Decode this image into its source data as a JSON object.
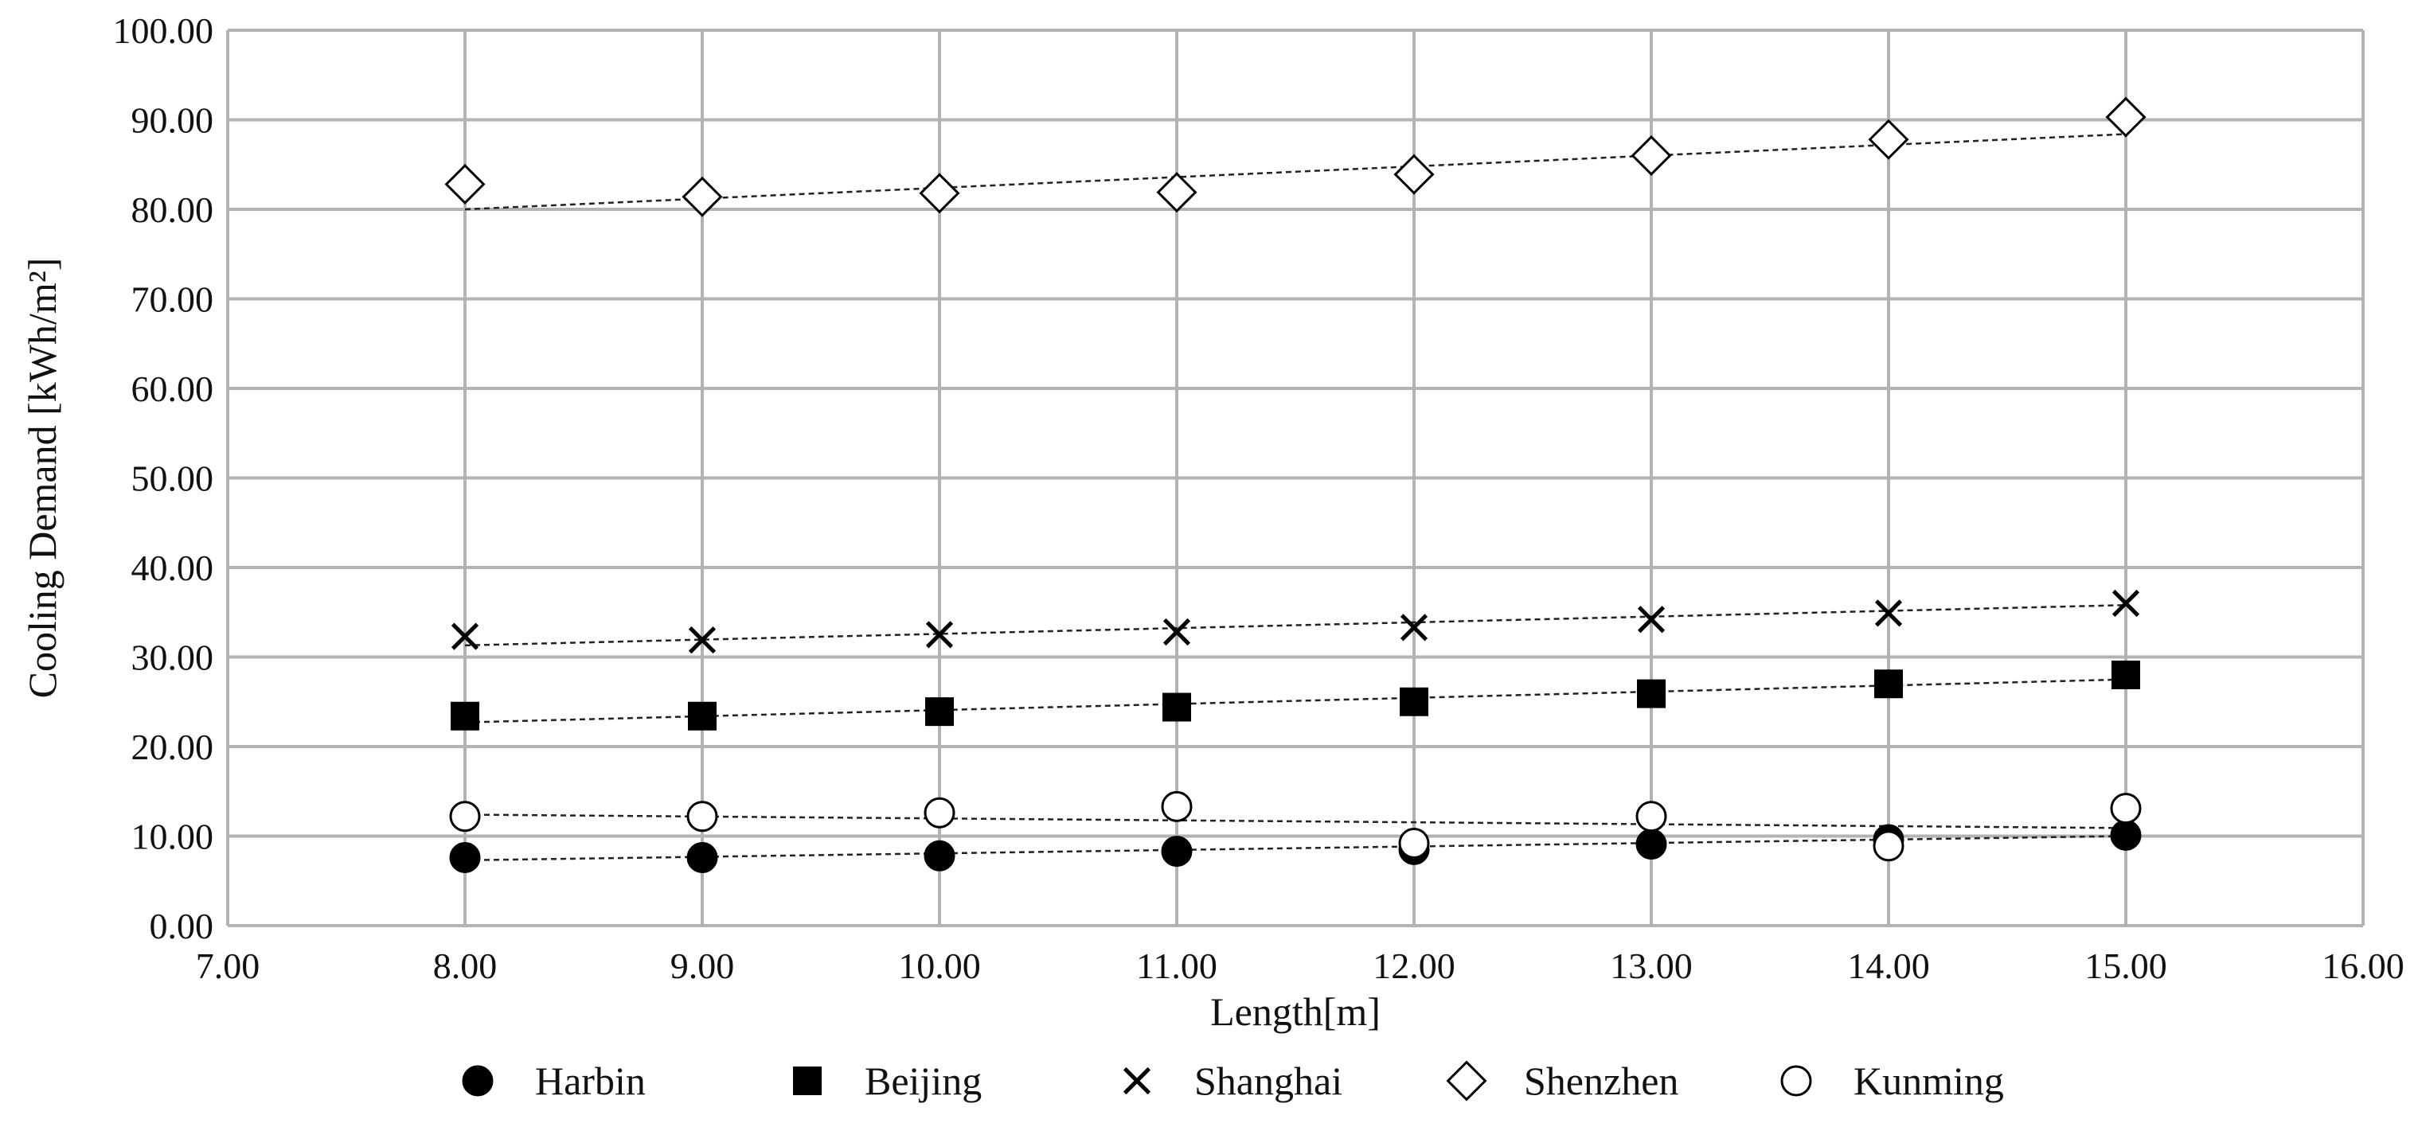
{
  "chart_data": {
    "type": "scatter",
    "title": "",
    "xlabel": "Length[m]",
    "ylabel": "Cooling Demand [kWh/m²]",
    "xlim": [
      7,
      16
    ],
    "ylim": [
      0,
      100
    ],
    "xticks": [
      7,
      8,
      9,
      10,
      11,
      12,
      13,
      14,
      15,
      16
    ],
    "yticks": [
      0,
      10,
      20,
      30,
      40,
      50,
      60,
      70,
      80,
      90,
      100
    ],
    "tick_decimals": 2,
    "grid": true,
    "legend_position": "bottom",
    "trendlines": true,
    "x": [
      8,
      9,
      10,
      11,
      12,
      13,
      14,
      15
    ],
    "series": [
      {
        "name": "Harbin",
        "marker": "filled-circle",
        "values": [
          7.6,
          7.6,
          7.8,
          8.3,
          8.5,
          9.1,
          9.6,
          10.1
        ],
        "trend": [
          7.3,
          10.0
        ]
      },
      {
        "name": "Beijing",
        "marker": "filled-square",
        "values": [
          23.4,
          23.4,
          23.9,
          24.4,
          25.0,
          25.9,
          27.0,
          28.0
        ],
        "trend": [
          22.7,
          27.5
        ]
      },
      {
        "name": "Shanghai",
        "marker": "x",
        "values": [
          32.3,
          31.9,
          32.5,
          32.8,
          33.3,
          34.2,
          34.9,
          36.0
        ],
        "trend": [
          31.3,
          35.8
        ]
      },
      {
        "name": "Shenzhen",
        "marker": "open-diamond",
        "values": [
          82.8,
          81.4,
          81.8,
          81.9,
          83.9,
          86.0,
          87.8,
          90.3
        ],
        "trend": [
          80.0,
          88.4
        ]
      },
      {
        "name": "Kunming",
        "marker": "open-circle",
        "values": [
          12.2,
          12.2,
          12.6,
          13.3,
          9.2,
          12.2,
          8.9,
          13.1
        ],
        "trend": [
          12.4,
          10.9
        ]
      }
    ]
  }
}
